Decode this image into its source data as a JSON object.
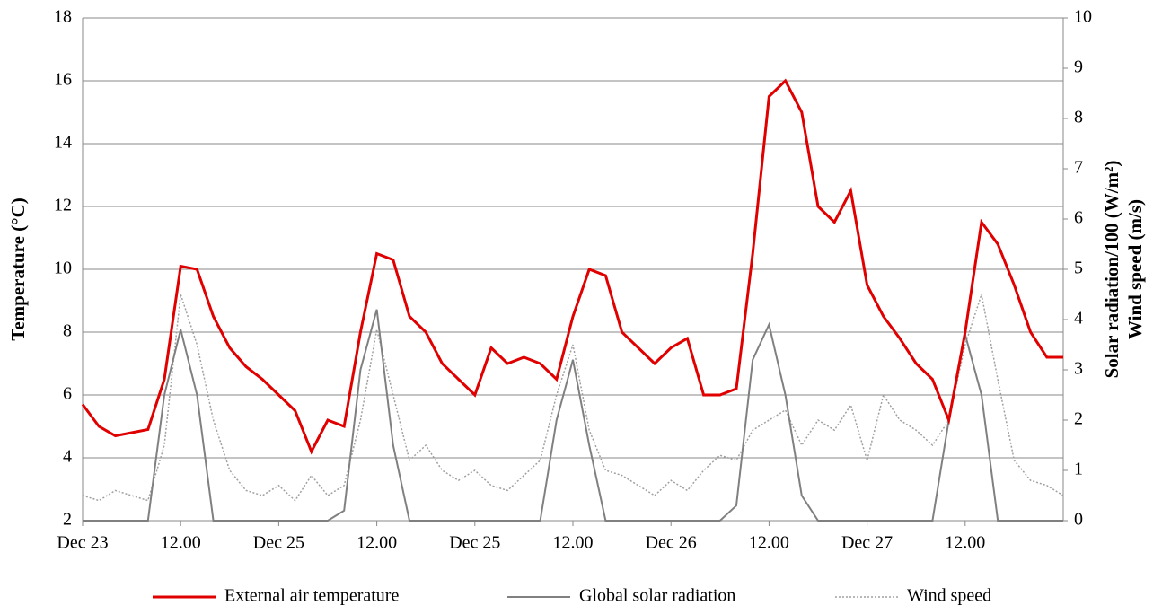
{
  "chart_data": {
    "type": "line",
    "ylabel": "Temperature (°C)",
    "y2label": [
      "Solar radiation/100 (W/m²)",
      "Wind  speed (m/s)"
    ],
    "xlim": [
      0,
      120
    ],
    "xticks": [
      {
        "value": 0,
        "label": "Dec 23"
      },
      {
        "value": 12,
        "label": "12.00"
      },
      {
        "value": 24,
        "label": "Dec 25"
      },
      {
        "value": 36,
        "label": "12.00"
      },
      {
        "value": 48,
        "label": "Dec 25"
      },
      {
        "value": 60,
        "label": "12.00"
      },
      {
        "value": 72,
        "label": "Dec 26"
      },
      {
        "value": 84,
        "label": "12.00"
      },
      {
        "value": 96,
        "label": "Dec 27"
      },
      {
        "value": 108,
        "label": "12.00"
      }
    ],
    "ylim": [
      2,
      18
    ],
    "yticks": [
      2,
      4,
      6,
      8,
      10,
      12,
      14,
      16,
      18
    ],
    "y2lim": [
      0,
      10
    ],
    "y2ticks": [
      0,
      1,
      2,
      3,
      4,
      5,
      6,
      7,
      8,
      9,
      10
    ],
    "grid": true,
    "x": [
      0,
      2,
      4,
      6,
      8,
      10,
      12,
      14,
      16,
      18,
      20,
      22,
      24,
      26,
      28,
      30,
      32,
      34,
      36,
      38,
      40,
      42,
      44,
      46,
      48,
      50,
      52,
      54,
      56,
      58,
      60,
      62,
      64,
      66,
      68,
      70,
      72,
      74,
      76,
      78,
      80,
      82,
      84,
      86,
      88,
      90,
      92,
      94,
      96,
      98,
      100,
      102,
      104,
      106,
      108,
      110,
      112,
      114,
      116,
      118,
      120
    ],
    "series": [
      {
        "name": "External air temperature",
        "color": "#e00000",
        "style": "solid",
        "values": [
          5.7,
          5.0,
          4.7,
          4.8,
          4.9,
          6.5,
          10.1,
          10.0,
          8.5,
          7.5,
          6.9,
          6.5,
          6.0,
          5.5,
          4.2,
          5.2,
          5.0,
          8.0,
          10.5,
          10.3,
          8.5,
          8.0,
          7.0,
          6.5,
          6.0,
          7.5,
          7.0,
          7.2,
          7.0,
          6.5,
          8.5,
          10.0,
          9.8,
          8.0,
          7.5,
          7.0,
          7.5,
          7.8,
          6.0,
          6.0,
          6.2,
          10.5,
          15.5,
          16.0,
          15.0,
          12.0,
          11.5,
          12.5,
          9.5,
          8.5,
          7.8,
          7.0,
          6.5,
          5.2,
          8.0,
          11.5,
          10.8,
          9.5,
          8.0,
          7.2,
          7.2
        ]
      },
      {
        "name": "Global solar radiation",
        "color": "#808080",
        "style": "solid",
        "axis": "y2",
        "values": [
          0,
          0,
          0,
          0,
          0,
          2.5,
          3.8,
          2.5,
          0,
          0,
          0,
          0,
          0,
          0,
          0,
          0,
          0.2,
          3.0,
          4.2,
          1.5,
          0,
          0,
          0,
          0,
          0,
          0,
          0,
          0,
          0,
          2.0,
          3.2,
          1.5,
          0,
          0,
          0,
          0,
          0,
          0,
          0,
          0,
          0.3,
          3.2,
          3.9,
          2.5,
          0.5,
          0,
          0,
          0,
          0,
          0,
          0,
          0,
          0,
          2.0,
          3.7,
          2.5,
          0,
          0,
          0,
          0,
          0
        ]
      },
      {
        "name": "Wind speed",
        "color": "#a0a0a0",
        "style": "dotted",
        "axis": "y2",
        "values": [
          0.5,
          0.4,
          0.6,
          0.5,
          0.4,
          1.5,
          4.5,
          3.5,
          2.0,
          1.0,
          0.6,
          0.5,
          0.7,
          0.4,
          0.9,
          0.5,
          0.7,
          2.0,
          3.8,
          2.5,
          1.2,
          1.5,
          1.0,
          0.8,
          1.0,
          0.7,
          0.6,
          0.9,
          1.2,
          2.5,
          3.5,
          1.8,
          1.0,
          0.9,
          0.7,
          0.5,
          0.8,
          0.6,
          1.0,
          1.3,
          1.2,
          1.8,
          2.0,
          2.2,
          1.5,
          2.0,
          1.8,
          2.3,
          1.2,
          2.5,
          2.0,
          1.8,
          1.5,
          2.0,
          3.5,
          4.5,
          2.8,
          1.2,
          0.8,
          0.7,
          0.5
        ]
      }
    ]
  }
}
